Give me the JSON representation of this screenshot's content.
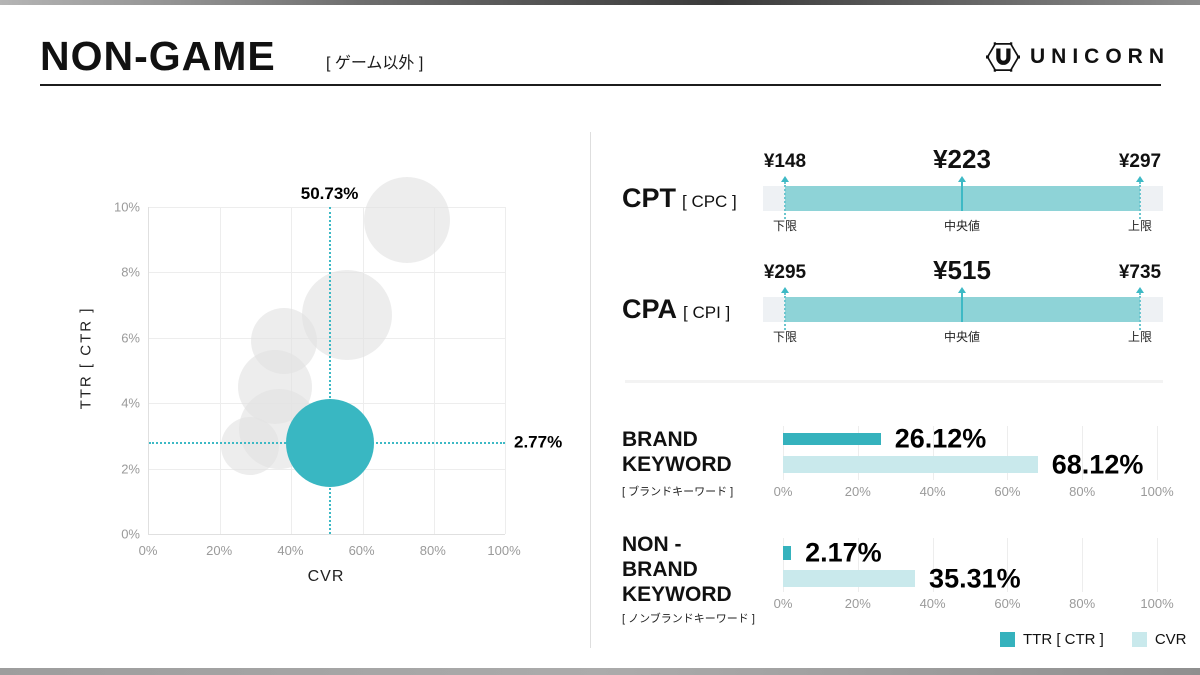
{
  "header": {
    "title": "NON-GAME",
    "subtitle": "[ ゲーム以外 ]",
    "brand": "UNICORN"
  },
  "colors": {
    "accent_teal": "#39b7c2",
    "accent_teal_dark": "#35b2bd",
    "light_teal": "#c9e9ec",
    "range_fill": "#8ed3d7",
    "range_track": "#eef1f4",
    "bubble_gray": "#e2e2e2",
    "crosshair": "#3db9c5"
  },
  "chart_data": [
    {
      "type": "scatter",
      "title": "",
      "xlabel": "CVR",
      "ylabel": "TTR [ CTR ]",
      "xlim": [
        0,
        100
      ],
      "ylim": [
        0,
        10
      ],
      "xticks": [
        "0%",
        "20%",
        "40%",
        "60%",
        "80%",
        "100%"
      ],
      "yticks": [
        "0%",
        "2%",
        "4%",
        "6%",
        "8%",
        "10%"
      ],
      "grid": true,
      "highlight": {
        "x": 50.73,
        "y": 2.77,
        "x_label": "50.73%",
        "y_label": "2.77%",
        "r": 44
      },
      "others": [
        {
          "x": 72.5,
          "y": 9.6,
          "r": 43
        },
        {
          "x": 55.5,
          "y": 6.7,
          "r": 45
        },
        {
          "x": 38.0,
          "y": 5.9,
          "r": 33
        },
        {
          "x": 35.5,
          "y": 4.5,
          "r": 37
        },
        {
          "x": 36.5,
          "y": 3.2,
          "r": 40
        },
        {
          "x": 28.5,
          "y": 2.7,
          "r": 29
        }
      ]
    },
    {
      "type": "range",
      "label": "CPT",
      "sublabel": "[ CPC ]",
      "min": {
        "value": "¥148",
        "label": "下限"
      },
      "median": {
        "value": "¥223",
        "label": "中央値"
      },
      "max": {
        "value": "¥297",
        "label": "上限"
      }
    },
    {
      "type": "range",
      "label": "CPA",
      "sublabel": "[ CPI ]",
      "min": {
        "value": "¥295",
        "label": "下限"
      },
      "median": {
        "value": "¥515",
        "label": "中央値"
      },
      "max": {
        "value": "¥735",
        "label": "上限"
      }
    },
    {
      "type": "bar",
      "label_lines": [
        "BRAND",
        "KEYWORD"
      ],
      "sublabel": "[ ブランドキーワード ]",
      "xlim": [
        0,
        100
      ],
      "xticks": [
        "0%",
        "20%",
        "40%",
        "60%",
        "80%",
        "100%"
      ],
      "series": [
        {
          "name": "TTR [ CTR ]",
          "value": 26.12,
          "display": "26.12%"
        },
        {
          "name": "CVR",
          "value": 68.12,
          "display": "68.12%"
        }
      ]
    },
    {
      "type": "bar",
      "label_lines": [
        "NON -",
        "BRAND",
        "KEYWORD"
      ],
      "sublabel": "[ ノンブランドキーワード ]",
      "xlim": [
        0,
        100
      ],
      "xticks": [
        "0%",
        "20%",
        "40%",
        "60%",
        "80%",
        "100%"
      ],
      "series": [
        {
          "name": "TTR [ CTR ]",
          "value": 2.17,
          "display": "2.17%"
        },
        {
          "name": "CVR",
          "value": 35.31,
          "display": "35.31%"
        }
      ]
    }
  ],
  "legend": {
    "items": [
      {
        "label": "TTR [ CTR ]",
        "color": "#35b2bd"
      },
      {
        "label": "CVR",
        "color": "#c9e9ec"
      }
    ]
  }
}
